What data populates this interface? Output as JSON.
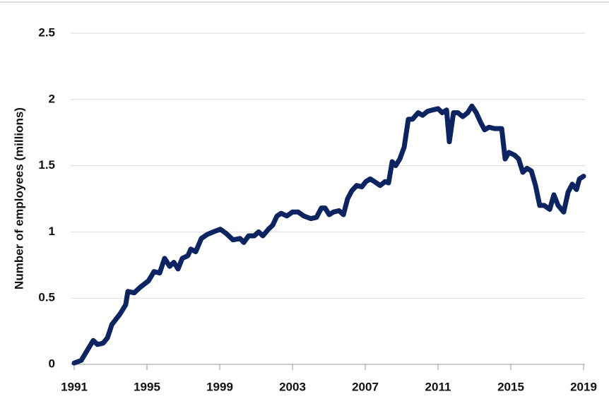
{
  "chart_data": {
    "type": "line",
    "y_label": "Number of employees (millions)",
    "series": [
      {
        "color": "#0c2461",
        "x": [
          1991.0,
          1991.39,
          1991.78,
          1992.05,
          1992.28,
          1992.59,
          1992.83,
          1993.07,
          1993.52,
          1993.83,
          1993.95,
          1994.3,
          1994.61,
          1995.08,
          1995.39,
          1995.7,
          1995.97,
          1996.25,
          1996.48,
          1996.71,
          1996.94,
          1997.25,
          1997.41,
          1997.68,
          1997.99,
          1998.3,
          1998.65,
          1999.03,
          1999.34,
          1999.73,
          2000.12,
          2000.32,
          2000.59,
          2000.9,
          2001.14,
          2001.37,
          2001.68,
          2001.91,
          2002.15,
          2002.38,
          2002.69,
          2003.0,
          2003.31,
          2003.62,
          2004.01,
          2004.32,
          2004.59,
          2004.79,
          2005.02,
          2005.25,
          2005.56,
          2005.8,
          2006.03,
          2006.26,
          2006.53,
          2006.81,
          2007.04,
          2007.27,
          2007.5,
          2007.82,
          2008.09,
          2008.28,
          2008.48,
          2008.67,
          2008.9,
          2009.14,
          2009.37,
          2009.6,
          2009.91,
          2010.15,
          2010.42,
          2010.69,
          2011.0,
          2011.23,
          2011.47,
          2011.62,
          2011.85,
          2012.09,
          2012.36,
          2012.63,
          2012.86,
          2013.1,
          2013.33,
          2013.56,
          2013.8,
          2014.11,
          2014.5,
          2014.69,
          2014.89,
          2015.2,
          2015.43,
          2015.66,
          2015.89,
          2016.13,
          2016.36,
          2016.59,
          2016.83,
          2017.14,
          2017.37,
          2017.6,
          2017.91,
          2018.15,
          2018.38,
          2018.61,
          2018.77,
          2019.0
        ],
        "values": [
          0.01,
          0.03,
          0.12,
          0.18,
          0.15,
          0.16,
          0.2,
          0.3,
          0.38,
          0.45,
          0.55,
          0.54,
          0.58,
          0.63,
          0.7,
          0.69,
          0.8,
          0.74,
          0.77,
          0.72,
          0.8,
          0.82,
          0.87,
          0.85,
          0.95,
          0.98,
          1.0,
          1.02,
          0.99,
          0.94,
          0.95,
          0.92,
          0.97,
          0.97,
          1.0,
          0.97,
          1.02,
          1.05,
          1.12,
          1.14,
          1.12,
          1.15,
          1.15,
          1.12,
          1.1,
          1.11,
          1.18,
          1.18,
          1.13,
          1.15,
          1.16,
          1.13,
          1.25,
          1.31,
          1.35,
          1.34,
          1.38,
          1.4,
          1.38,
          1.35,
          1.38,
          1.37,
          1.53,
          1.5,
          1.55,
          1.64,
          1.85,
          1.85,
          1.9,
          1.88,
          1.91,
          1.92,
          1.93,
          1.9,
          1.92,
          1.68,
          1.9,
          1.9,
          1.87,
          1.9,
          1.95,
          1.9,
          1.83,
          1.77,
          1.79,
          1.78,
          1.78,
          1.55,
          1.6,
          1.58,
          1.55,
          1.45,
          1.48,
          1.46,
          1.35,
          1.2,
          1.2,
          1.17,
          1.28,
          1.2,
          1.15,
          1.3,
          1.36,
          1.32,
          1.4,
          1.42
        ]
      }
    ],
    "xlim": [
      1991,
      2019
    ],
    "xticks": [
      1991,
      1995,
      1999,
      2003,
      2007,
      2011,
      2015,
      2019
    ],
    "ylim": [
      0,
      2.5
    ],
    "yticks": [
      0,
      0.5,
      1,
      1.5,
      2,
      2.5
    ],
    "grid": true
  }
}
